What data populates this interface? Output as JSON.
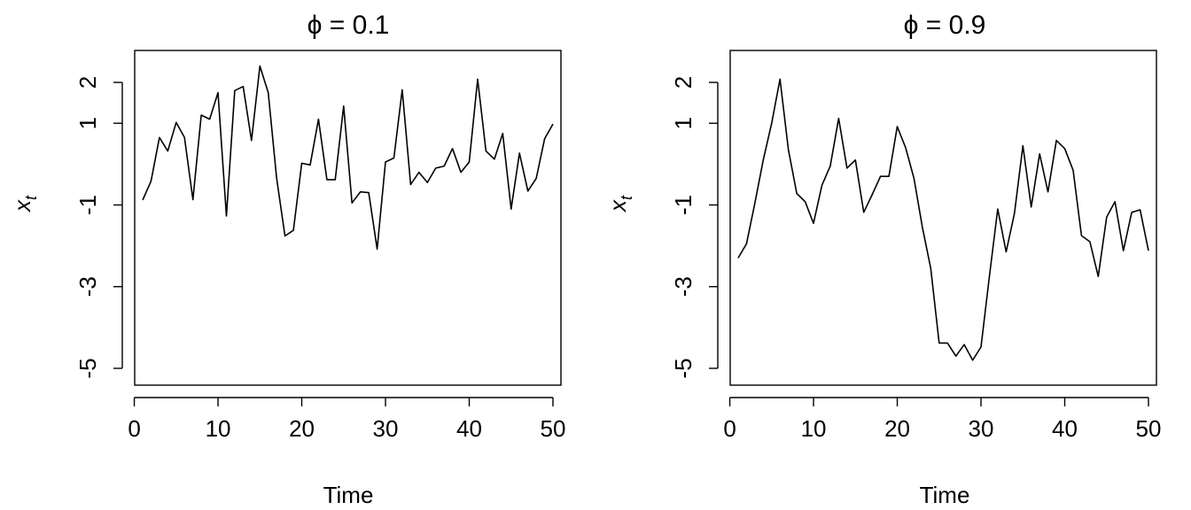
{
  "chart_data": [
    {
      "type": "line",
      "title": "ϕ = 0.1",
      "xlabel": "Time",
      "ylabel": "x",
      "ylabel_sub": "t",
      "xlim": [
        1,
        50
      ],
      "ylim": [
        -5,
        2.5
      ],
      "xticks": [
        0,
        10,
        20,
        30,
        40,
        50
      ],
      "yticks": [
        -5,
        -3,
        -1,
        1,
        2
      ],
      "ytick_labels": [
        "-5",
        "-3",
        "-1",
        "1",
        "2"
      ],
      "grid": false,
      "x": [
        1,
        2,
        3,
        4,
        5,
        6,
        7,
        8,
        9,
        10,
        11,
        12,
        13,
        14,
        15,
        16,
        17,
        18,
        19,
        20,
        21,
        22,
        23,
        24,
        25,
        26,
        27,
        28,
        29,
        30,
        31,
        32,
        33,
        34,
        35,
        36,
        37,
        38,
        39,
        40,
        41,
        42,
        43,
        44,
        45,
        46,
        47,
        48,
        49,
        50
      ],
      "values": [
        -0.88,
        -0.42,
        0.65,
        0.32,
        1.02,
        0.65,
        -0.87,
        1.2,
        1.1,
        1.75,
        -1.27,
        1.8,
        1.9,
        0.58,
        2.4,
        1.75,
        -0.35,
        -1.76,
        -1.62,
        0.02,
        -0.02,
        1.1,
        -0.38,
        -0.38,
        1.42,
        -0.95,
        -0.68,
        -0.7,
        -2.08,
        0.05,
        0.15,
        1.82,
        -0.5,
        -0.2,
        -0.45,
        -0.1,
        -0.05,
        0.38,
        -0.2,
        0.05,
        2.08,
        0.32,
        0.12,
        0.75,
        -1.1,
        0.27,
        -0.66,
        -0.35,
        0.62,
        0.98
      ]
    },
    {
      "type": "line",
      "title": "ϕ = 0.9",
      "xlabel": "Time",
      "ylabel": "x",
      "ylabel_sub": "t",
      "xlim": [
        1,
        50
      ],
      "ylim": [
        -5,
        2.5
      ],
      "xticks": [
        0,
        10,
        20,
        30,
        40,
        50
      ],
      "yticks": [
        -5,
        -3,
        -1,
        1,
        2
      ],
      "ytick_labels": [
        "-5",
        "-3",
        "-1",
        "1",
        "2"
      ],
      "grid": false,
      "x": [
        1,
        2,
        3,
        4,
        5,
        6,
        7,
        8,
        9,
        10,
        11,
        12,
        13,
        14,
        15,
        16,
        17,
        18,
        19,
        20,
        21,
        22,
        23,
        24,
        25,
        26,
        27,
        28,
        29,
        30,
        31,
        32,
        33,
        34,
        35,
        36,
        37,
        38,
        39,
        40,
        41,
        42,
        43,
        44,
        45,
        46,
        47,
        48,
        49,
        50
      ],
      "values": [
        -2.3,
        -1.95,
        -0.95,
        0.1,
        1.0,
        2.08,
        0.35,
        -0.72,
        -0.92,
        -1.45,
        -0.52,
        -0.05,
        1.12,
        -0.1,
        0.1,
        -1.18,
        -0.75,
        -0.3,
        -0.3,
        0.92,
        0.4,
        -0.35,
        -1.55,
        -2.55,
        -4.38,
        -4.38,
        -4.7,
        -4.42,
        -4.8,
        -4.48,
        -2.75,
        -1.1,
        -2.15,
        -1.2,
        0.45,
        -1.05,
        0.25,
        -0.68,
        0.58,
        0.38,
        -0.15,
        -1.75,
        -1.9,
        -2.75,
        -1.3,
        -0.92,
        -2.12,
        -1.18,
        -1.12,
        -2.12
      ]
    }
  ]
}
